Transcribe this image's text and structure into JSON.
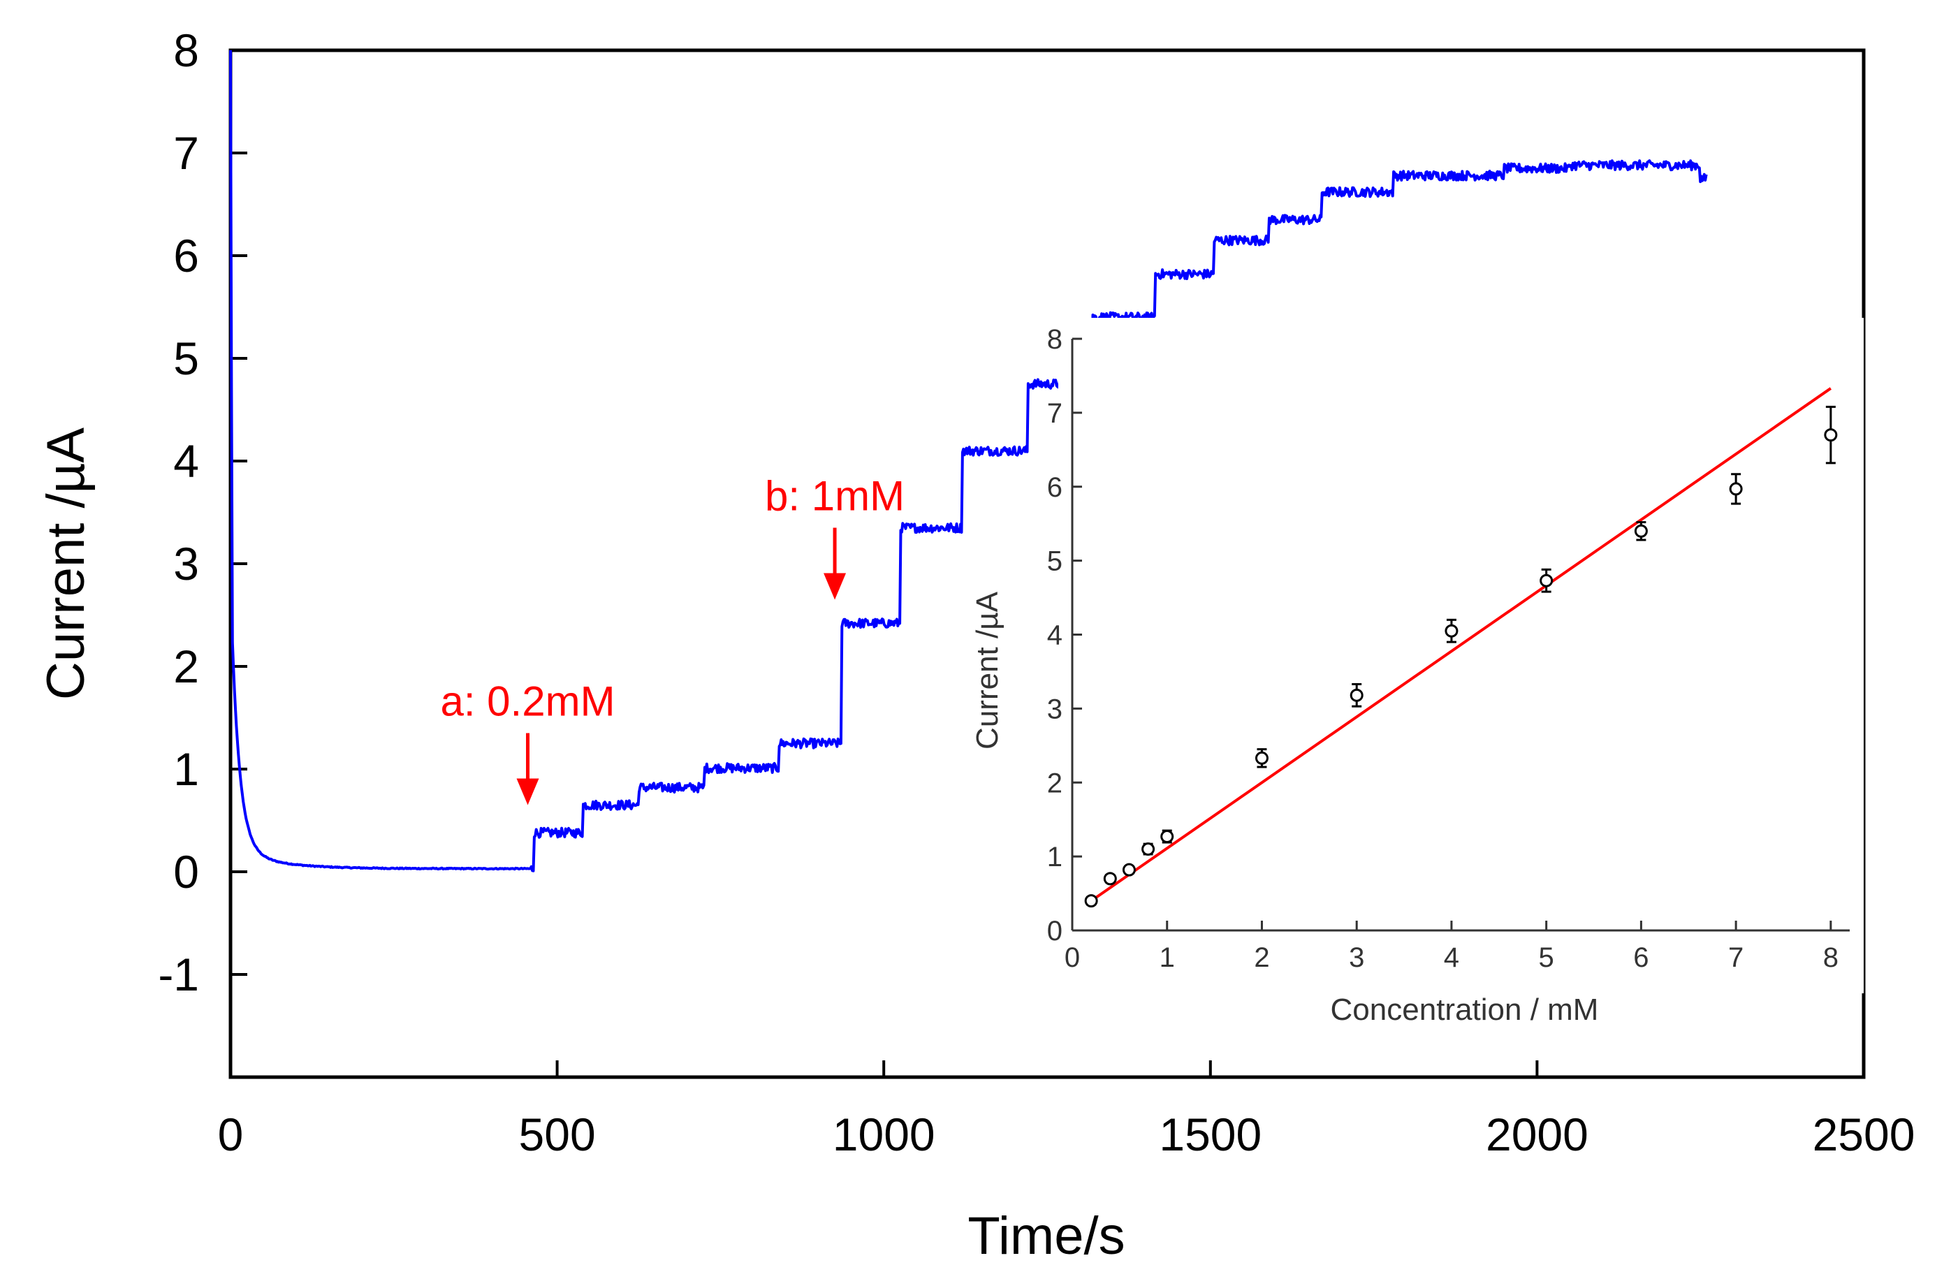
{
  "chart_data": [
    {
      "id": "main",
      "type": "line",
      "title": "",
      "xlabel": "Time/s",
      "ylabel": "Current /µA",
      "xlim": [
        0,
        2500
      ],
      "ylim": [
        -2,
        8
      ],
      "xticks": [
        0,
        500,
        1000,
        1500,
        2000,
        2500
      ],
      "yticks": [
        -1,
        0,
        1,
        2,
        3,
        4,
        5,
        6,
        7,
        8
      ],
      "grid": false,
      "series_color": "#0000ff",
      "steps": [
        {
          "t": 465,
          "level": 0.38
        },
        {
          "t": 540,
          "level": 0.65
        },
        {
          "t": 625,
          "level": 0.82
        },
        {
          "t": 725,
          "level": 1.01
        },
        {
          "t": 840,
          "level": 1.25
        },
        {
          "t": 935,
          "level": 2.42
        },
        {
          "t": 1025,
          "level": 3.35
        },
        {
          "t": 1120,
          "level": 4.1
        },
        {
          "t": 1220,
          "level": 4.75
        },
        {
          "t": 1320,
          "level": 5.4
        },
        {
          "t": 1415,
          "level": 5.82
        },
        {
          "t": 1505,
          "level": 6.15
        },
        {
          "t": 1590,
          "level": 6.35
        },
        {
          "t": 1670,
          "level": 6.62
        },
        {
          "t": 1780,
          "level": 6.78
        },
        {
          "t": 1950,
          "level": 6.85
        },
        {
          "t": 2050,
          "level": 6.88
        },
        {
          "t": 2250,
          "level": 6.75
        }
      ],
      "end_time": 2260,
      "annotations": [
        {
          "text": "a: 0.2mM",
          "x": 455,
          "y_from": 1.35,
          "y_to": 0.65
        },
        {
          "text": "b: 1mM",
          "x": 925,
          "y_from": 3.35,
          "y_to": 2.65
        }
      ],
      "annotation_color": "#ff0000"
    },
    {
      "id": "inset",
      "type": "scatter",
      "xlabel": "Concentration / mM",
      "ylabel": "Current /µA",
      "xlim": [
        0,
        8.2
      ],
      "ylim": [
        0,
        8
      ],
      "xticks": [
        0,
        1,
        2,
        3,
        4,
        5,
        6,
        7,
        8
      ],
      "yticks": [
        0,
        1,
        2,
        3,
        4,
        5,
        6,
        7,
        8
      ],
      "points": [
        {
          "x": 0.2,
          "y": 0.4,
          "err": 0.05
        },
        {
          "x": 0.4,
          "y": 0.7,
          "err": 0.05
        },
        {
          "x": 0.6,
          "y": 0.82,
          "err": 0.05
        },
        {
          "x": 0.8,
          "y": 1.1,
          "err": 0.07
        },
        {
          "x": 1.0,
          "y": 1.27,
          "err": 0.08
        },
        {
          "x": 2.0,
          "y": 2.33,
          "err": 0.12
        },
        {
          "x": 3.0,
          "y": 3.18,
          "err": 0.15
        },
        {
          "x": 4.0,
          "y": 4.05,
          "err": 0.15
        },
        {
          "x": 5.0,
          "y": 4.73,
          "err": 0.15
        },
        {
          "x": 6.0,
          "y": 5.4,
          "err": 0.12
        },
        {
          "x": 7.0,
          "y": 5.97,
          "err": 0.2
        },
        {
          "x": 8.0,
          "y": 6.7,
          "err": 0.38
        }
      ],
      "fit": {
        "x": [
          0.2,
          8.0
        ],
        "y": [
          0.4,
          7.33
        ]
      },
      "fit_color": "#ff0000"
    }
  ]
}
